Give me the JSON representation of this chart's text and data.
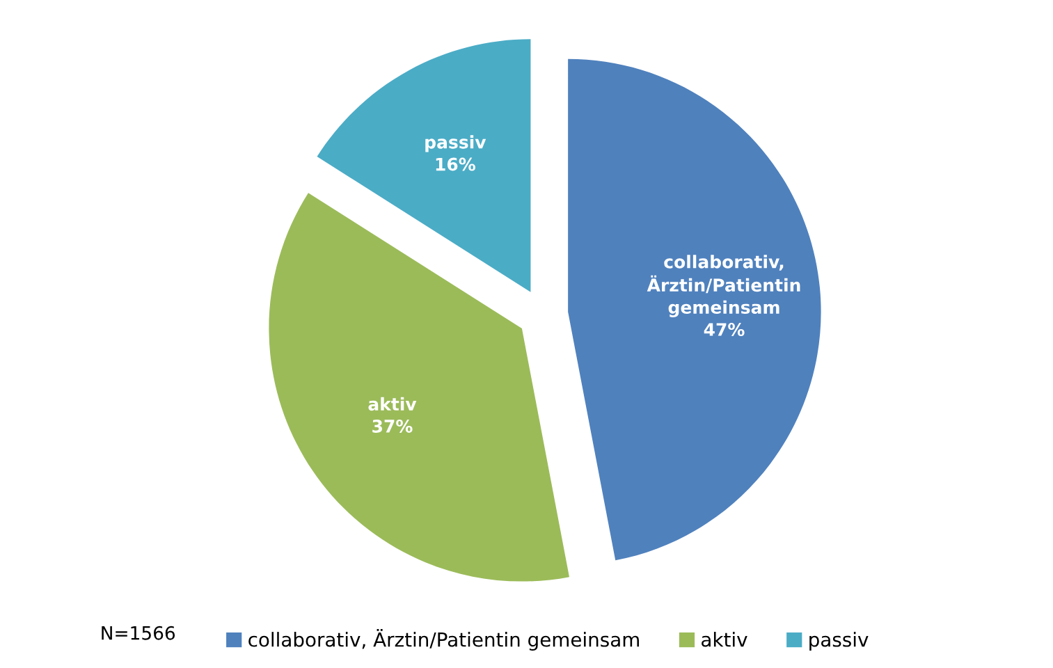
{
  "chart_data": {
    "type": "pie",
    "categories": [
      "collaborativ, Ärztin/Patientin gemeinsam",
      "aktiv",
      "passiv"
    ],
    "values": [
      47,
      37,
      16
    ],
    "colors": [
      "#4f81bd",
      "#9bbb59",
      "#4bacc6"
    ],
    "value_labels": [
      "47%",
      "37%",
      "16%"
    ],
    "legend": "bottom",
    "annotations": [
      "N=1566"
    ]
  }
}
